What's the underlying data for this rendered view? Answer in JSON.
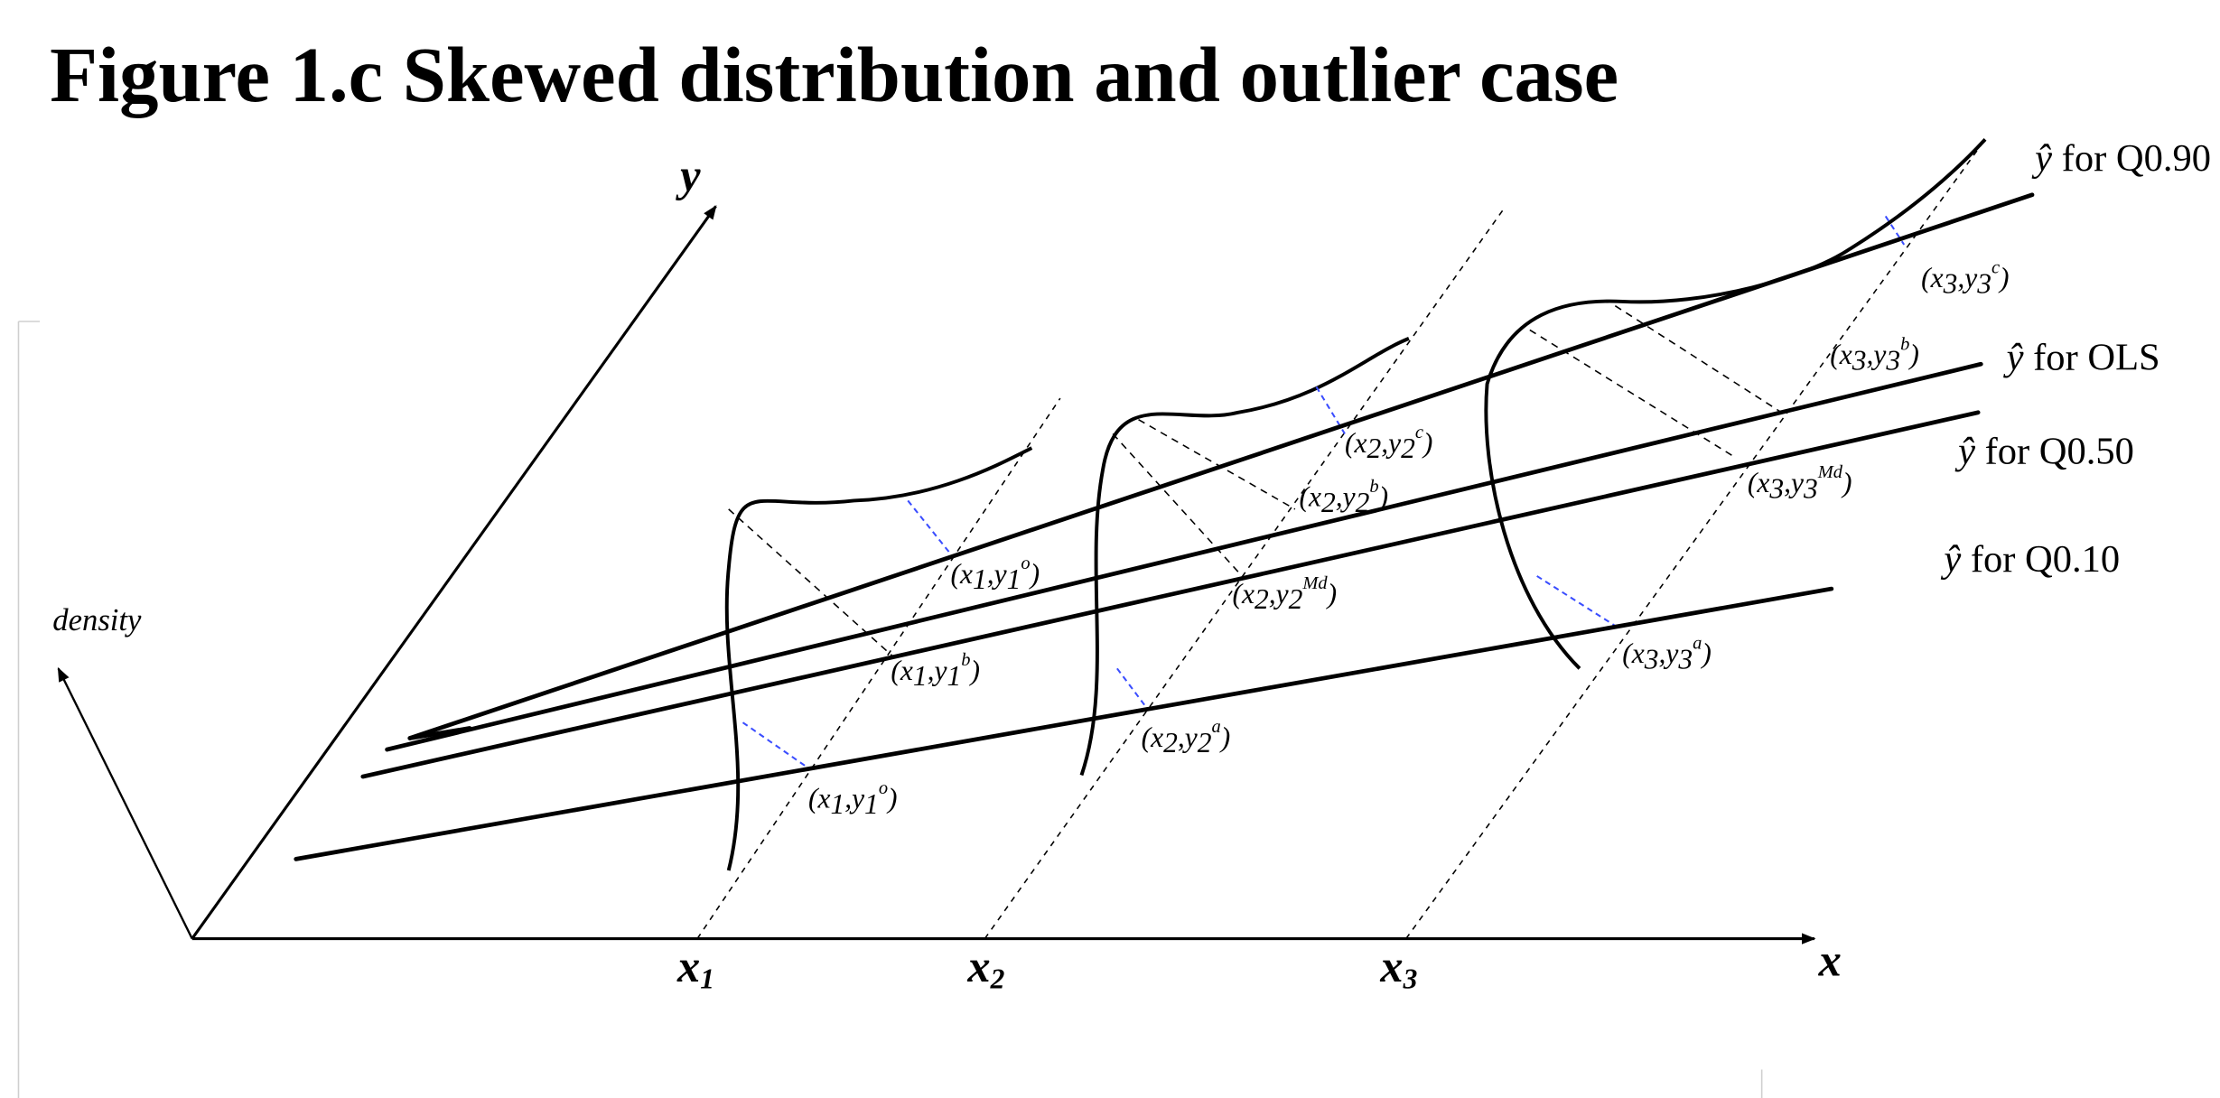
{
  "title": "Figure 1.c Skewed distribution and outlier case",
  "axes": {
    "y": "y",
    "x": "x",
    "density": "density"
  },
  "x_ticks": [
    {
      "base": "x",
      "sub": "1"
    },
    {
      "base": "x",
      "sub": "2"
    },
    {
      "base": "x",
      "sub": "3"
    }
  ],
  "regression_lines": [
    {
      "hat": "ŷ",
      "text": " for Q0.90"
    },
    {
      "hat": "ŷ",
      "text": "  for OLS"
    },
    {
      "hat": "ŷ",
      "text": "  for Q0.50"
    },
    {
      "hat": "ŷ",
      "text": "  for Q0.10"
    }
  ],
  "points": {
    "x1_q90": {
      "open": "(x",
      "i1": "1",
      "mid": ",y",
      "i2": "1",
      "sup": "o",
      "close": ")"
    },
    "x1_ols": {
      "open": "(x",
      "i1": "1",
      "mid": ",y",
      "i2": "1",
      "sup": "b",
      "close": ")"
    },
    "x1_q10": {
      "open": "(x",
      "i1": "1",
      "mid": ",y",
      "i2": "1",
      "sup": "o",
      "close": ")"
    },
    "x2_q90": {
      "open": "(x",
      "i1": "2",
      "mid": ",y",
      "i2": "2",
      "sup": "c",
      "close": ")"
    },
    "x2_ols": {
      "open": "(x",
      "i1": "2",
      "mid": ",y",
      "i2": "2",
      "sup": "b",
      "close": ")"
    },
    "x2_q50": {
      "open": "(x",
      "i1": "2",
      "mid": ",y",
      "i2": "2",
      "sup": "Md",
      "close": ")"
    },
    "x2_q10": {
      "open": "(x",
      "i1": "2",
      "mid": ",y",
      "i2": "2",
      "sup": "a",
      "close": ")"
    },
    "x3_q90": {
      "open": "(x",
      "i1": "3",
      "mid": ",y",
      "i2": "3",
      "sup": "c",
      "close": ")"
    },
    "x3_ols": {
      "open": "(x",
      "i1": "3",
      "mid": ",y",
      "i2": "3",
      "sup": "b",
      "close": ")"
    },
    "x3_q50": {
      "open": "(x",
      "i1": "3",
      "mid": ",y",
      "i2": "3",
      "sup": "Md",
      "close": ")"
    },
    "x3_q10": {
      "open": "(x",
      "i1": "3",
      "mid": ",y",
      "i2": "3",
      "sup": "a",
      "close": ")"
    }
  }
}
